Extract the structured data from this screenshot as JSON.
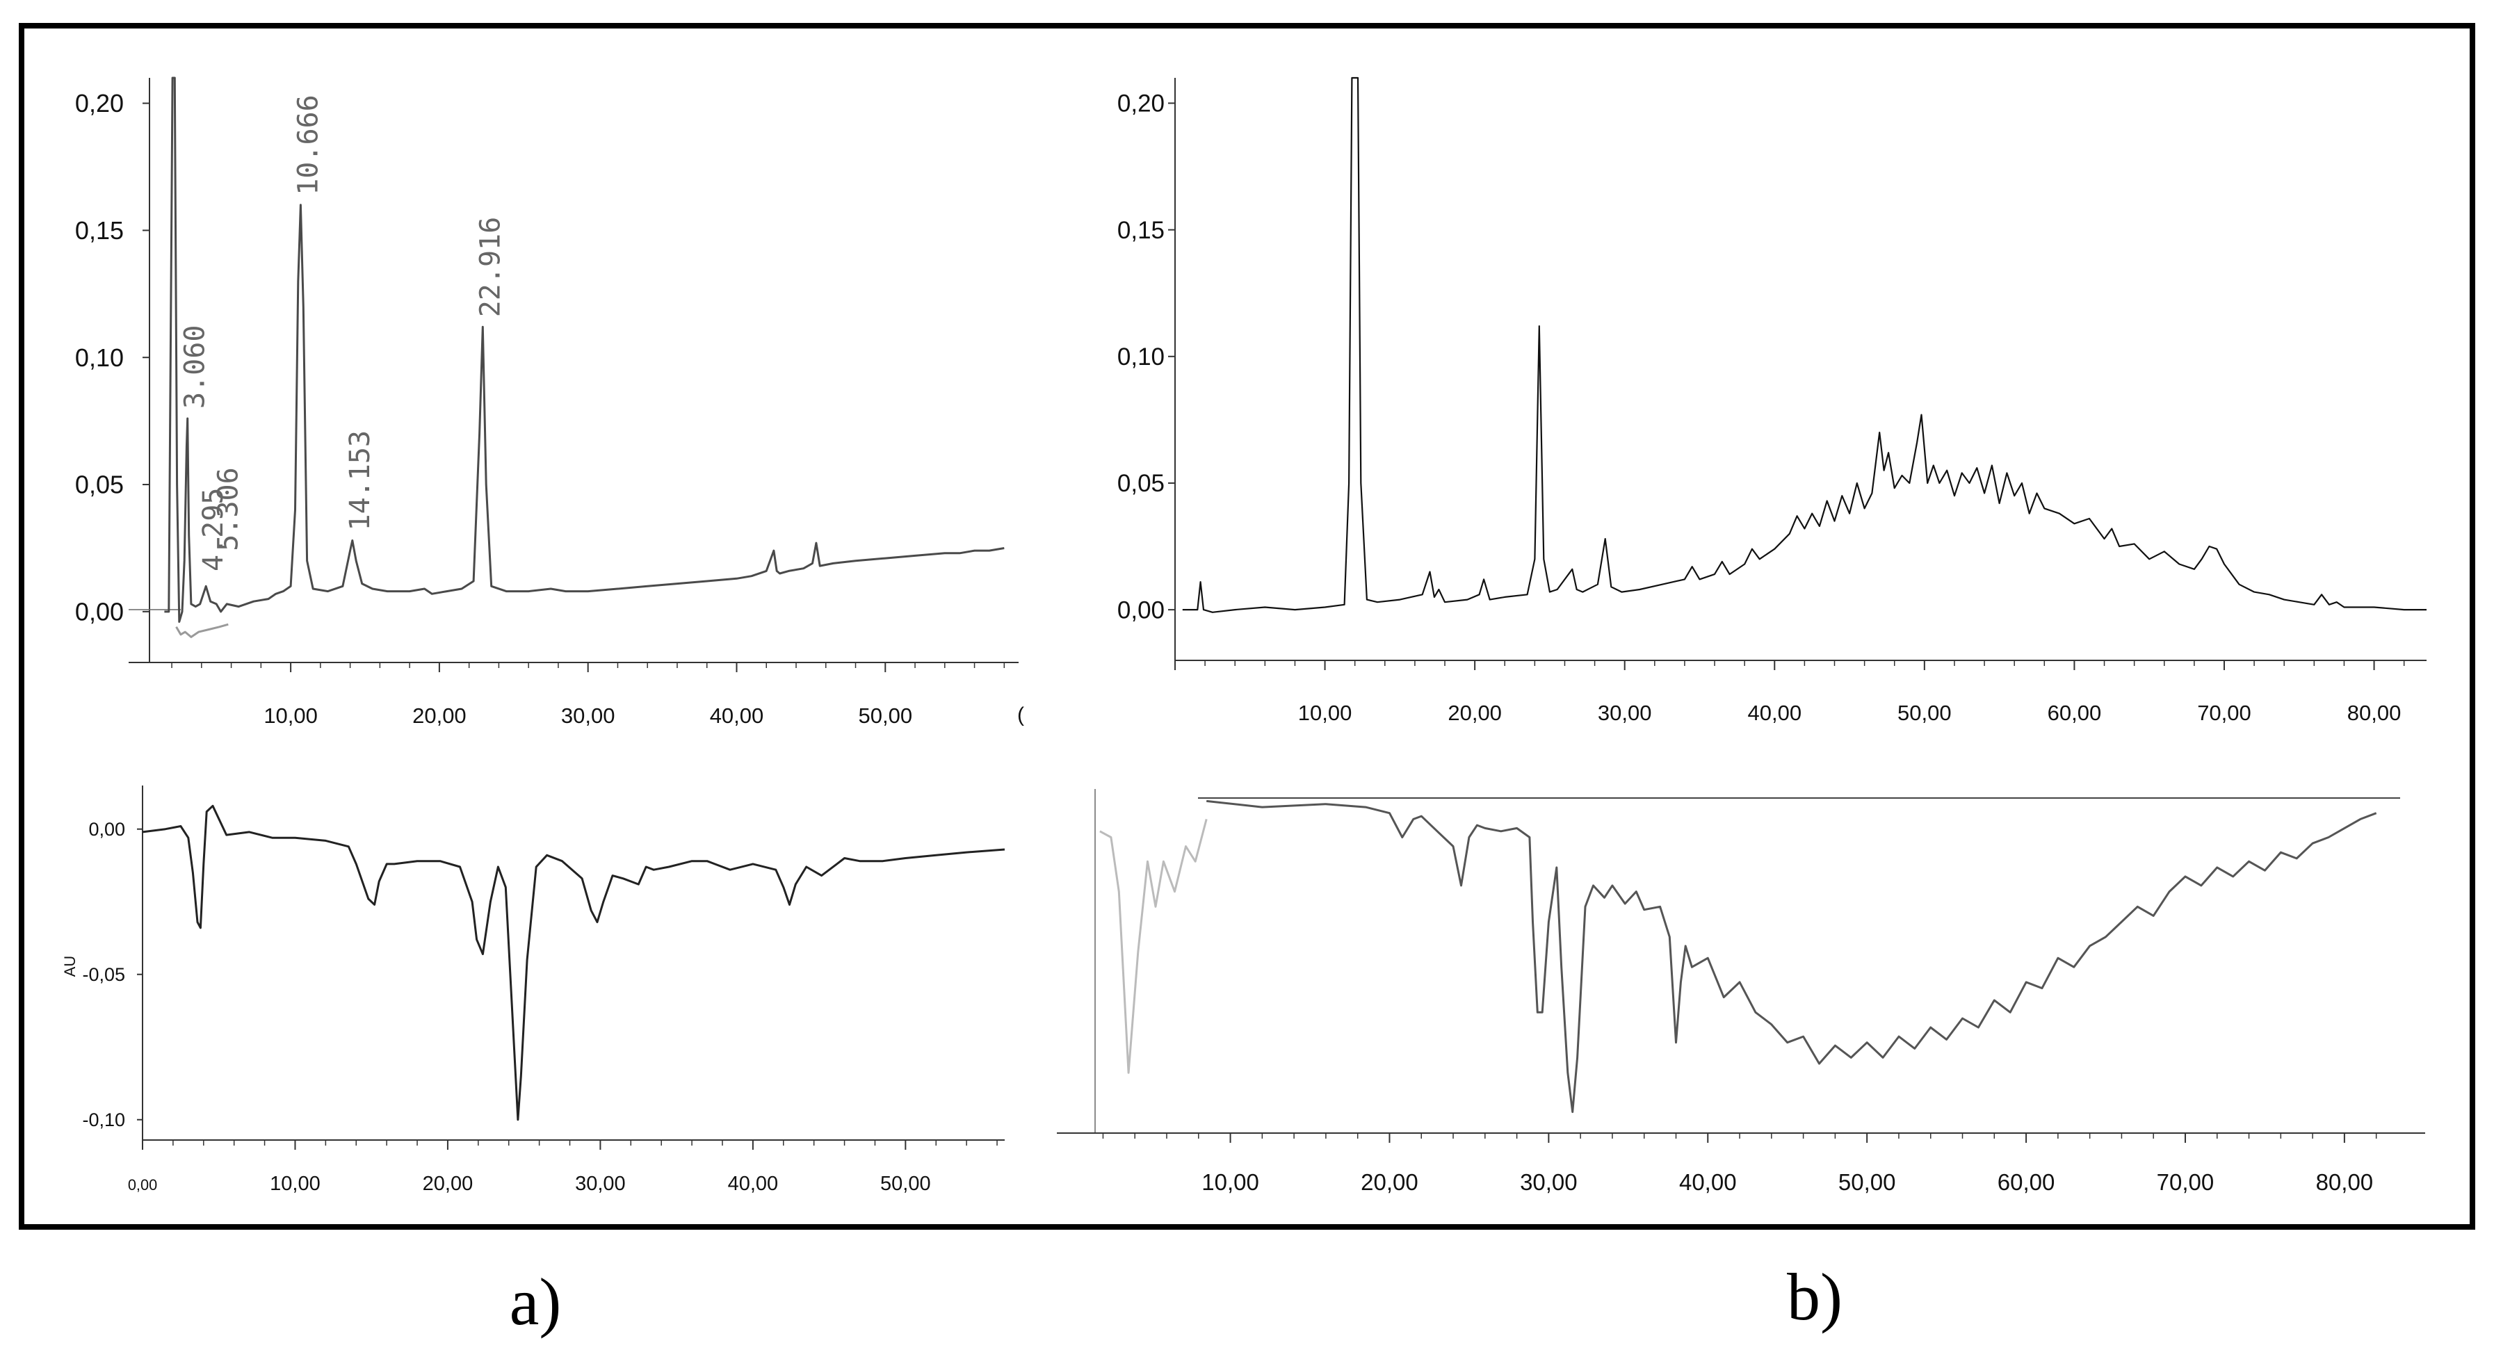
{
  "panel_labels": [
    "a)",
    "b)"
  ],
  "chart_data": [
    {
      "id": "a_top",
      "type": "line",
      "xlim": [
        0.5,
        58.5
      ],
      "ylim": [
        -0.02,
        0.21
      ],
      "x_ticks": [
        "10,00",
        "20,00",
        "30,00",
        "40,00",
        "50,00"
      ],
      "x_tick_values": [
        10,
        20,
        30,
        40,
        50
      ],
      "x_edge_label": "(",
      "y_ticks": [
        "0,00",
        "0,05",
        "0,10",
        "0,15",
        "0,20"
      ],
      "y_tick_values": [
        0,
        0.05,
        0.1,
        0.15,
        0.2
      ],
      "peak_labels": [
        {
          "text": "3.060",
          "x": 3.06,
          "y": 0.076
        },
        {
          "text": "4.295",
          "x": 4.3,
          "y": 0.012
        },
        {
          "text": "5.306",
          "x": 5.3,
          "y": 0.02
        },
        {
          "text": "10.666",
          "x": 10.67,
          "y": 0.16
        },
        {
          "text": "14.153",
          "x": 14.15,
          "y": 0.028
        },
        {
          "text": "22.916",
          "x": 22.92,
          "y": 0.112
        }
      ],
      "series": [
        {
          "x": [
            1.5,
            1.8,
            2.05,
            2.2,
            2.35,
            2.5,
            2.7,
            2.85,
            3.0,
            3.06,
            3.15,
            3.3,
            3.6,
            3.9,
            4.3,
            4.6,
            5.0,
            5.3,
            5.7,
            6.5,
            7.5,
            8.5,
            9.0,
            9.5,
            10.0,
            10.3,
            10.5,
            10.67,
            10.85,
            11.1,
            11.5,
            12.5,
            13.5,
            14.0,
            14.15,
            14.4,
            14.8,
            15.5,
            16.5,
            18.0,
            19.0,
            19.5,
            20.5,
            21.5,
            22.3,
            22.7,
            22.92,
            23.15,
            23.5,
            24.5,
            26.0,
            27.5,
            28.5,
            30.0,
            32.0,
            34.0,
            36.0,
            38.0,
            40.0,
            41.0,
            42.0,
            42.5,
            42.7,
            42.9,
            43.5,
            44.5,
            45.1,
            45.35,
            45.6,
            46.5,
            48.0,
            50.0,
            52.0,
            54.0,
            55.0,
            56.0,
            57.0,
            58.0
          ],
          "y": [
            0.0,
            0.0,
            0.21,
            0.21,
            0.05,
            -0.004,
            0.0,
            0.02,
            0.065,
            0.076,
            0.03,
            0.003,
            0.002,
            0.003,
            0.01,
            0.004,
            0.003,
            0.0,
            0.003,
            0.002,
            0.004,
            0.005,
            0.007,
            0.008,
            0.01,
            0.04,
            0.13,
            0.16,
            0.12,
            0.02,
            0.009,
            0.008,
            0.01,
            0.024,
            0.028,
            0.02,
            0.011,
            0.009,
            0.008,
            0.008,
            0.009,
            0.007,
            0.008,
            0.009,
            0.012,
            0.07,
            0.112,
            0.05,
            0.01,
            0.008,
            0.008,
            0.009,
            0.008,
            0.008,
            0.009,
            0.01,
            0.011,
            0.012,
            0.013,
            0.014,
            0.016,
            0.024,
            0.016,
            0.015,
            0.016,
            0.017,
            0.019,
            0.027,
            0.018,
            0.019,
            0.02,
            0.021,
            0.022,
            0.023,
            0.023,
            0.024,
            0.024,
            0.025
          ],
          "color": "#4a4a4a"
        },
        {
          "x": [
            2.3,
            2.6,
            2.9,
            3.3,
            3.8,
            4.5,
            5.2,
            5.8
          ],
          "y": [
            -0.006,
            -0.009,
            -0.008,
            -0.01,
            -0.008,
            -0.007,
            -0.006,
            -0.005
          ],
          "color": "#9a9a9a"
        }
      ]
    },
    {
      "id": "a_bottom",
      "type": "line",
      "xlim": [
        0,
        56.5
      ],
      "ylim": [
        -0.107,
        0.015
      ],
      "ylabel": "AU",
      "x_ticks": [
        "0,00",
        "10,00",
        "20,00",
        "30,00",
        "40,00",
        "50,00"
      ],
      "x_tick_values": [
        0,
        10,
        20,
        30,
        40,
        50
      ],
      "y_ticks": [
        "0,00",
        "-0,05",
        "-0,10"
      ],
      "y_tick_values": [
        0,
        -0.05,
        -0.1
      ],
      "series": [
        {
          "x": [
            0.0,
            1.5,
            2.5,
            3.0,
            3.3,
            3.6,
            3.8,
            4.0,
            4.2,
            4.6,
            5.5,
            7.0,
            8.5,
            10.0,
            12.0,
            13.5,
            14.0,
            14.8,
            15.2,
            15.5,
            16.0,
            16.5,
            18.0,
            19.5,
            20.8,
            21.6,
            21.9,
            22.3,
            22.8,
            23.3,
            23.8,
            24.2,
            24.5,
            24.6,
            24.8,
            25.2,
            25.8,
            26.5,
            27.5,
            28.8,
            29.4,
            29.8,
            30.2,
            30.8,
            31.5,
            32.5,
            33.0,
            33.5,
            34.5,
            36.0,
            37.0,
            37.5,
            38.5,
            40.0,
            41.5,
            42.0,
            42.4,
            42.8,
            43.5,
            44.5,
            45.5,
            46.0,
            47.0,
            48.5,
            50.0,
            52.0,
            54.0,
            56.5
          ],
          "y": [
            -0.001,
            0.0,
            0.001,
            -0.003,
            -0.015,
            -0.032,
            -0.034,
            -0.012,
            0.006,
            0.008,
            -0.002,
            -0.001,
            -0.003,
            -0.003,
            -0.004,
            -0.006,
            -0.012,
            -0.024,
            -0.026,
            -0.018,
            -0.012,
            -0.012,
            -0.011,
            -0.011,
            -0.013,
            -0.025,
            -0.038,
            -0.043,
            -0.025,
            -0.013,
            -0.02,
            -0.06,
            -0.09,
            -0.1,
            -0.085,
            -0.045,
            -0.013,
            -0.009,
            -0.011,
            -0.017,
            -0.028,
            -0.032,
            -0.025,
            -0.016,
            -0.017,
            -0.019,
            -0.013,
            -0.014,
            -0.013,
            -0.011,
            -0.011,
            -0.012,
            -0.014,
            -0.012,
            -0.014,
            -0.02,
            -0.026,
            -0.019,
            -0.013,
            -0.016,
            -0.012,
            -0.01,
            -0.011,
            -0.011,
            -0.01,
            -0.009,
            -0.008,
            -0.007
          ],
          "color": "#222222"
        }
      ]
    },
    {
      "id": "b_top",
      "type": "line",
      "xlim": [
        0,
        83.5
      ],
      "ylim": [
        -0.02,
        0.21
      ],
      "x_ticks": [
        "10,00",
        "20,00",
        "30,00",
        "40,00",
        "50,00",
        "60,00",
        "70,00",
        "80,00"
      ],
      "x_tick_values": [
        10,
        20,
        30,
        40,
        50,
        60,
        70,
        80
      ],
      "y_ticks": [
        "0,00",
        "0,05",
        "0,10",
        "0,15",
        "0,20"
      ],
      "y_tick_values": [
        0,
        0.05,
        0.1,
        0.15,
        0.2
      ],
      "series": [
        {
          "x": [
            0.5,
            1.0,
            1.5,
            1.7,
            1.9,
            2.5,
            4.0,
            6.0,
            8.0,
            10.0,
            11.3,
            11.6,
            11.8,
            12.2,
            12.4,
            12.8,
            13.5,
            15.0,
            16.5,
            17.0,
            17.3,
            17.6,
            18.0,
            19.5,
            20.3,
            20.6,
            21.0,
            22.0,
            23.5,
            24.0,
            24.3,
            24.6,
            25.0,
            25.5,
            26.5,
            26.8,
            27.2,
            28.2,
            28.7,
            29.1,
            29.8,
            31.0,
            32.5,
            34.0,
            34.5,
            35.0,
            36.0,
            36.5,
            37.0,
            38.0,
            38.5,
            39.0,
            40.0,
            41.0,
            41.5,
            42.0,
            42.5,
            43.0,
            43.5,
            44.0,
            44.5,
            45.0,
            45.5,
            46.0,
            46.5,
            47.0,
            47.3,
            47.6,
            48.0,
            48.5,
            49.0,
            49.5,
            49.8,
            50.2,
            50.6,
            51.0,
            51.5,
            52.0,
            52.5,
            53.0,
            53.5,
            54.0,
            54.5,
            55.0,
            55.5,
            56.0,
            56.5,
            57.0,
            57.5,
            58.0,
            59.0,
            60.0,
            61.0,
            62.0,
            62.5,
            63.0,
            64.0,
            65.0,
            66.0,
            67.0,
            68.0,
            68.5,
            69.0,
            69.5,
            70.0,
            71.0,
            72.0,
            73.0,
            74.0,
            75.0,
            76.0,
            76.5,
            77.0,
            77.5,
            78.0,
            80.0,
            82.0,
            83.5
          ],
          "y": [
            0.0,
            0.0,
            0.0,
            0.011,
            0.0,
            -0.001,
            0.0,
            0.001,
            0.0,
            0.001,
            0.002,
            0.05,
            0.21,
            0.21,
            0.05,
            0.004,
            0.003,
            0.004,
            0.006,
            0.015,
            0.005,
            0.008,
            0.003,
            0.004,
            0.006,
            0.012,
            0.004,
            0.005,
            0.006,
            0.02,
            0.112,
            0.02,
            0.007,
            0.008,
            0.016,
            0.008,
            0.007,
            0.01,
            0.028,
            0.009,
            0.007,
            0.008,
            0.01,
            0.012,
            0.017,
            0.012,
            0.014,
            0.019,
            0.014,
            0.018,
            0.024,
            0.02,
            0.024,
            0.03,
            0.037,
            0.032,
            0.038,
            0.033,
            0.043,
            0.035,
            0.045,
            0.038,
            0.05,
            0.04,
            0.046,
            0.07,
            0.055,
            0.062,
            0.048,
            0.053,
            0.05,
            0.066,
            0.077,
            0.05,
            0.057,
            0.05,
            0.055,
            0.045,
            0.054,
            0.05,
            0.056,
            0.046,
            0.057,
            0.042,
            0.054,
            0.045,
            0.05,
            0.038,
            0.046,
            0.04,
            0.038,
            0.034,
            0.036,
            0.028,
            0.032,
            0.025,
            0.026,
            0.02,
            0.023,
            0.018,
            0.016,
            0.02,
            0.025,
            0.024,
            0.018,
            0.01,
            0.007,
            0.006,
            0.004,
            0.003,
            0.002,
            0.006,
            0.002,
            0.003,
            0.001,
            0.001,
            0.0,
            0.0
          ],
          "color": "#111111"
        }
      ]
    },
    {
      "id": "b_bottom",
      "type": "line",
      "xlim": [
        1.5,
        83.5
      ],
      "ylim": [
        -0.11,
        0.004
      ],
      "x_ticks": [
        "10,00",
        "20,00",
        "30,00",
        "40,00",
        "50,00",
        "60,00",
        "70,00",
        "80,00"
      ],
      "x_tick_values": [
        10,
        20,
        30,
        40,
        50,
        60,
        70,
        80
      ],
      "series": [
        {
          "x": [
            8.5,
            12.0,
            16.0,
            18.5,
            20.0,
            20.8,
            21.5,
            22.0,
            23.0,
            24.0,
            24.5,
            25.0,
            25.5,
            26.0,
            27.0,
            28.0,
            28.8,
            29.0,
            29.3,
            29.6,
            30.0,
            30.5,
            30.8,
            31.2,
            31.5,
            31.8,
            32.3,
            32.8,
            33.5,
            34.0,
            34.8,
            35.5,
            36.0,
            37.0,
            37.6,
            38.0,
            38.3,
            38.6,
            39.0,
            40.0,
            41.0,
            42.0,
            43.0,
            44.0,
            45.0,
            46.0,
            47.0,
            48.0,
            49.0,
            50.0,
            51.0,
            52.0,
            53.0,
            54.0,
            55.0,
            56.0,
            57.0,
            58.0,
            59.0,
            60.0,
            61.0,
            62.0,
            63.0,
            64.0,
            65.0,
            66.0,
            67.0,
            68.0,
            69.0,
            70.0,
            71.0,
            72.0,
            73.0,
            74.0,
            75.0,
            76.0,
            77.0,
            78.0,
            79.0,
            80.0,
            81.0,
            82.0
          ],
          "y": [
            0.0,
            -0.002,
            -0.001,
            -0.002,
            -0.004,
            -0.012,
            -0.006,
            -0.005,
            -0.01,
            -0.015,
            -0.028,
            -0.012,
            -0.008,
            -0.009,
            -0.01,
            -0.009,
            -0.012,
            -0.04,
            -0.07,
            -0.07,
            -0.04,
            -0.022,
            -0.055,
            -0.09,
            -0.103,
            -0.085,
            -0.035,
            -0.028,
            -0.032,
            -0.028,
            -0.034,
            -0.03,
            -0.036,
            -0.035,
            -0.045,
            -0.08,
            -0.06,
            -0.048,
            -0.055,
            -0.052,
            -0.065,
            -0.06,
            -0.07,
            -0.074,
            -0.08,
            -0.078,
            -0.087,
            -0.081,
            -0.085,
            -0.08,
            -0.085,
            -0.078,
            -0.082,
            -0.075,
            -0.079,
            -0.072,
            -0.075,
            -0.066,
            -0.07,
            -0.06,
            -0.062,
            -0.052,
            -0.055,
            -0.048,
            -0.045,
            -0.04,
            -0.035,
            -0.038,
            -0.03,
            -0.025,
            -0.028,
            -0.022,
            -0.025,
            -0.02,
            -0.023,
            -0.017,
            -0.019,
            -0.014,
            -0.012,
            -0.009,
            -0.006,
            -0.004
          ],
          "color": "#555555"
        },
        {
          "x": [
            1.8,
            2.5,
            3.0,
            3.6,
            4.2,
            4.8,
            5.3,
            5.8,
            6.5,
            7.2,
            7.8,
            8.5
          ],
          "y": [
            -0.01,
            -0.012,
            -0.03,
            -0.09,
            -0.05,
            -0.02,
            -0.035,
            -0.02,
            -0.03,
            -0.015,
            -0.02,
            -0.006
          ],
          "color": "#bbbbbb"
        }
      ]
    }
  ]
}
